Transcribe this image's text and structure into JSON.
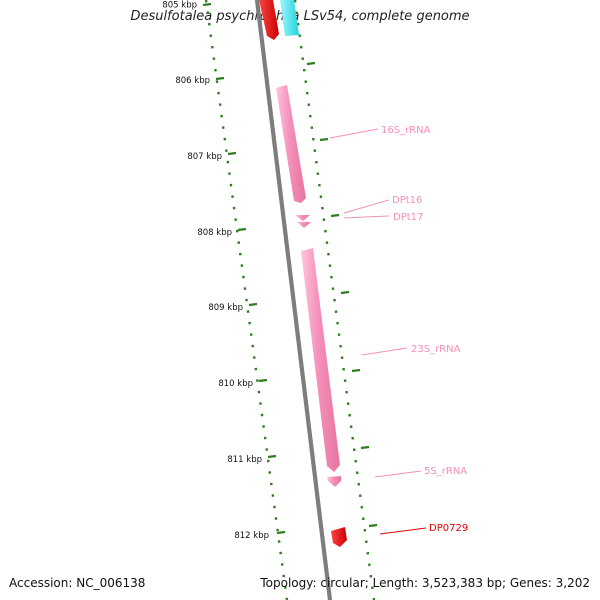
{
  "title": "Desulfotalea psychrophila LSv54, complete genome",
  "footer": {
    "accession": "Accession: NC_006138",
    "summary": "Topology: circular; Length: 3,523,383 bp; Genes: 3,202"
  },
  "ticks": [
    {
      "label": "805 kbp"
    },
    {
      "label": "806 kbp"
    },
    {
      "label": "807 kbp"
    },
    {
      "label": "808 kbp"
    },
    {
      "label": "809 kbp"
    },
    {
      "label": "810 kbp"
    },
    {
      "label": "811 kbp"
    },
    {
      "label": "812 kbp"
    }
  ],
  "features": [
    {
      "id": "16S_rRNA",
      "label": "16S_rRNA",
      "type": "rRNA",
      "color": "#f48fb8"
    },
    {
      "id": "DPt16",
      "label": "DPt16",
      "type": "tRNA",
      "color": "#f48fb8"
    },
    {
      "id": "DPt17",
      "label": "DPt17",
      "type": "tRNA",
      "color": "#f48fb8"
    },
    {
      "id": "23S_rRNA",
      "label": "23S_rRNA",
      "type": "rRNA",
      "color": "#f48fb8"
    },
    {
      "id": "5S_rRNA",
      "label": "5S_rRNA",
      "type": "rRNA",
      "color": "#f48fb8"
    },
    {
      "id": "DP0729",
      "label": "DP0729",
      "type": "gene",
      "color": "#e30000"
    }
  ],
  "colors": {
    "backbone": "#7d7d7d",
    "scale": "#2e7d1e",
    "rRNA": "#f48fb8",
    "gene": "#e30000",
    "gene_other": "#35e6ee"
  }
}
